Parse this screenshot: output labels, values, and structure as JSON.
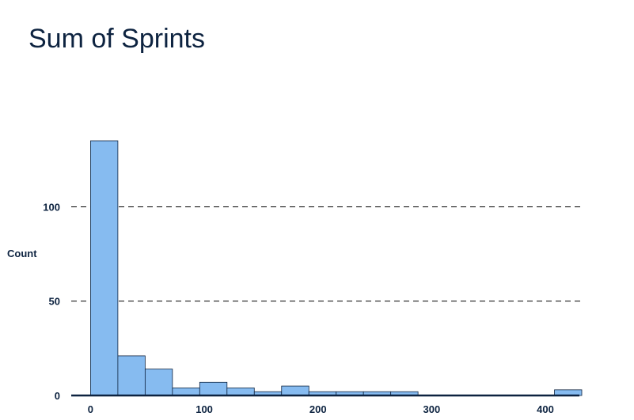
{
  "chart_data": {
    "type": "bar",
    "title": "Sum of Sprints",
    "xlabel": "",
    "ylabel": "Count",
    "xlim": [
      -17,
      432
    ],
    "ylim": [
      0,
      135
    ],
    "x_ticks": [
      "0",
      "100",
      "200",
      "300",
      "400"
    ],
    "x_tick_values": [
      0,
      100,
      200,
      300,
      400
    ],
    "y_ticks": [
      "0",
      "50",
      "100"
    ],
    "y_tick_values": [
      0,
      50,
      100
    ],
    "grid": "horizontal-dashed",
    "bins": [
      {
        "start": 0,
        "end": 24,
        "count": 135
      },
      {
        "start": 24,
        "end": 48,
        "count": 21
      },
      {
        "start": 48,
        "end": 72,
        "count": 14
      },
      {
        "start": 72,
        "end": 96,
        "count": 4
      },
      {
        "start": 96,
        "end": 120,
        "count": 7
      },
      {
        "start": 120,
        "end": 144,
        "count": 4
      },
      {
        "start": 144,
        "end": 168,
        "count": 2
      },
      {
        "start": 168,
        "end": 192,
        "count": 5
      },
      {
        "start": 192,
        "end": 216,
        "count": 2
      },
      {
        "start": 216,
        "end": 240,
        "count": 2
      },
      {
        "start": 240,
        "end": 264,
        "count": 2
      },
      {
        "start": 264,
        "end": 288,
        "count": 2
      },
      {
        "start": 408,
        "end": 432,
        "count": 3
      }
    ],
    "colors": {
      "bar_fill": "#86bbf0",
      "bar_stroke": "#0d2340",
      "text": "#0d2340",
      "grid": "#000000"
    }
  }
}
